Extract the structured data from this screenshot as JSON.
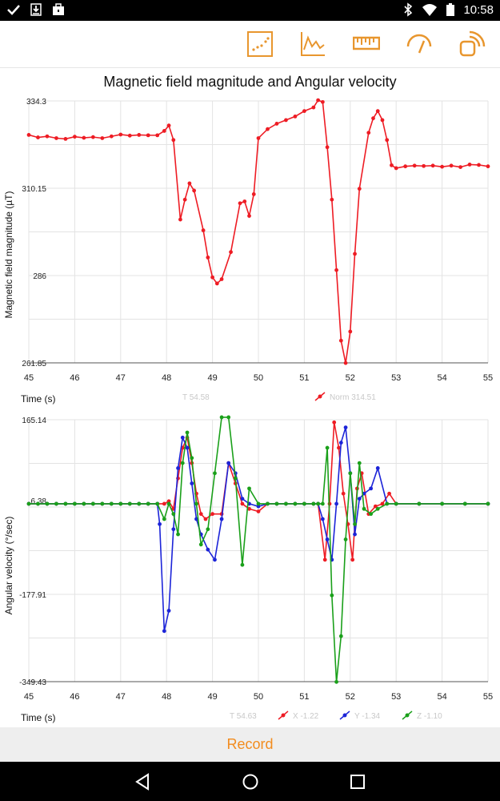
{
  "status_bar": {
    "time": "10:58",
    "icons": [
      "check-icon",
      "download-icon",
      "briefcase-icon",
      "bluetooth-icon",
      "wifi-icon",
      "battery-icon"
    ]
  },
  "toolbar": {
    "icons": [
      "scatter-chart-icon",
      "line-chart-icon",
      "ruler-icon",
      "gauge-icon",
      "signal-icon"
    ],
    "accent_color": "#e8962e"
  },
  "page": {
    "title": "Magnetic field magnitude and Angular velocity"
  },
  "record": {
    "label": "Record",
    "color": "#f28c1e"
  },
  "nav": {
    "icons": [
      "back-icon",
      "home-icon",
      "recents-icon"
    ]
  },
  "chart_data": [
    {
      "type": "line",
      "title": "",
      "xlabel": "Time (s)",
      "ylabel": "Magnetic field magnitude (µT)",
      "xlim": [
        45,
        55
      ],
      "ylim": [
        261.85,
        334.3
      ],
      "x_ticks": [
        "45",
        "46",
        "47",
        "48",
        "49",
        "50",
        "51",
        "52",
        "53",
        "54",
        "55"
      ],
      "y_ticks": [
        "334.3",
        "310.15",
        "286",
        "261.85"
      ],
      "readout": {
        "t": "T 54.58"
      },
      "legend": [
        {
          "name": "Norm 314.51",
          "color": "#ee1c24"
        }
      ],
      "series": [
        {
          "name": "Norm",
          "color": "#ee1c24",
          "x": [
            45.0,
            45.2,
            45.4,
            45.6,
            45.8,
            46.0,
            46.2,
            46.4,
            46.6,
            46.8,
            47.0,
            47.2,
            47.4,
            47.6,
            47.8,
            47.95,
            48.05,
            48.15,
            48.3,
            48.4,
            48.5,
            48.6,
            48.8,
            48.9,
            49.0,
            49.1,
            49.2,
            49.4,
            49.6,
            49.7,
            49.8,
            49.9,
            50.0,
            50.2,
            50.4,
            50.6,
            50.8,
            51.0,
            51.2,
            51.3,
            51.4,
            51.5,
            51.6,
            51.7,
            51.8,
            51.9,
            52.0,
            52.1,
            52.2,
            52.4,
            52.5,
            52.6,
            52.7,
            52.8,
            52.9,
            53.0,
            53.2,
            53.4,
            53.6,
            53.8,
            54.0,
            54.2,
            54.4,
            54.6,
            54.8,
            55.0
          ],
          "y": [
            324.9,
            324.2,
            324.5,
            324.0,
            323.8,
            324.4,
            324.1,
            324.3,
            324.0,
            324.5,
            325.0,
            324.7,
            324.9,
            324.8,
            324.8,
            326.0,
            327.5,
            323.5,
            301.5,
            307.0,
            311.5,
            309.5,
            298.5,
            291.0,
            285.5,
            283.8,
            285.0,
            292.5,
            306.0,
            306.5,
            302.5,
            308.5,
            324.0,
            326.5,
            328.0,
            329.0,
            330.0,
            331.5,
            332.5,
            334.5,
            334.0,
            321.5,
            307.0,
            287.5,
            268.0,
            261.8,
            270.5,
            292.0,
            310.0,
            325.5,
            329.5,
            331.5,
            329.0,
            323.5,
            316.5,
            315.7,
            316.2,
            316.4,
            316.3,
            316.4,
            316.1,
            316.4,
            316.0,
            316.7,
            316.6,
            316.2
          ]
        }
      ]
    },
    {
      "type": "line",
      "title": "",
      "xlabel": "Time (s)",
      "ylabel": "Angular velocity (°/sec)",
      "xlim": [
        45,
        55
      ],
      "ylim": [
        -349.43,
        165.14
      ],
      "x_ticks": [
        "45",
        "46",
        "47",
        "48",
        "49",
        "50",
        "51",
        "52",
        "53",
        "54",
        "55"
      ],
      "y_ticks": [
        "165.14",
        "6.38",
        "-177.91",
        "-349.43"
      ],
      "readout": {
        "t": "T 54.63"
      },
      "legend": [
        {
          "name": "X -1.22",
          "color": "#ee1c24"
        },
        {
          "name": "Y -1.34",
          "color": "#1c24d8"
        },
        {
          "name": "Z -1.10",
          "color": "#1aa01a"
        }
      ],
      "series": [
        {
          "name": "X",
          "color": "#ee1c24",
          "x": [
            45.0,
            45.2,
            45.4,
            45.6,
            45.8,
            46.0,
            46.2,
            46.4,
            46.6,
            46.8,
            47.0,
            47.2,
            47.4,
            47.6,
            47.8,
            47.95,
            48.05,
            48.15,
            48.25,
            48.35,
            48.45,
            48.55,
            48.65,
            48.75,
            48.85,
            49.0,
            49.2,
            49.35,
            49.5,
            49.65,
            49.8,
            50.0,
            50.2,
            50.4,
            50.6,
            50.8,
            51.0,
            51.2,
            51.3,
            51.45,
            51.55,
            51.65,
            51.75,
            51.85,
            51.95,
            52.05,
            52.15,
            52.25,
            52.4,
            52.55,
            52.7,
            52.85,
            53.0,
            53.5,
            54.0,
            54.5,
            55.0
          ],
          "y": [
            0,
            0,
            0,
            0,
            0,
            0,
            0,
            0,
            0,
            0,
            0,
            0,
            0,
            0,
            0,
            0,
            5,
            -10,
            50,
            110,
            130,
            80,
            20,
            -20,
            -30,
            -20,
            -20,
            80,
            40,
            0,
            -10,
            -15,
            0,
            0,
            0,
            0,
            0,
            0,
            0,
            -110,
            0,
            160,
            110,
            20,
            -40,
            -110,
            30,
            60,
            -20,
            -5,
            0,
            20,
            0,
            0,
            0,
            0,
            0
          ]
        },
        {
          "name": "Y",
          "color": "#1c24d8",
          "x": [
            45.0,
            45.2,
            45.4,
            45.6,
            45.8,
            46.0,
            46.2,
            46.4,
            46.6,
            46.8,
            47.0,
            47.2,
            47.4,
            47.6,
            47.8,
            47.85,
            47.95,
            48.05,
            48.15,
            48.25,
            48.35,
            48.45,
            48.55,
            48.65,
            48.75,
            48.9,
            49.05,
            49.2,
            49.35,
            49.5,
            49.65,
            49.8,
            50.0,
            50.2,
            50.4,
            50.6,
            50.8,
            51.0,
            51.2,
            51.3,
            51.4,
            51.5,
            51.6,
            51.7,
            51.8,
            51.9,
            52.0,
            52.1,
            52.2,
            52.3,
            52.45,
            52.6,
            52.8,
            53.0,
            53.5,
            54.0,
            54.5,
            55.0
          ],
          "y": [
            0,
            0,
            0,
            0,
            0,
            0,
            0,
            0,
            0,
            0,
            0,
            0,
            0,
            0,
            0,
            -40,
            -250,
            -210,
            -50,
            70,
            130,
            110,
            40,
            -30,
            -60,
            -90,
            -110,
            -30,
            80,
            60,
            10,
            0,
            -5,
            0,
            0,
            0,
            0,
            0,
            0,
            0,
            -30,
            -70,
            -110,
            0,
            120,
            150,
            60,
            -60,
            10,
            20,
            30,
            70,
            0,
            0,
            0,
            0,
            0,
            0
          ]
        },
        {
          "name": "Z",
          "color": "#1aa01a",
          "x": [
            45.0,
            45.2,
            45.4,
            45.6,
            45.8,
            46.0,
            46.2,
            46.4,
            46.6,
            46.8,
            47.0,
            47.2,
            47.4,
            47.6,
            47.8,
            47.95,
            48.05,
            48.15,
            48.25,
            48.35,
            48.45,
            48.55,
            48.65,
            48.75,
            48.9,
            49.05,
            49.2,
            49.35,
            49.5,
            49.65,
            49.8,
            50.0,
            50.2,
            50.4,
            50.6,
            50.8,
            51.0,
            51.2,
            51.3,
            51.4,
            51.5,
            51.6,
            51.7,
            51.8,
            51.9,
            52.0,
            52.1,
            52.2,
            52.3,
            52.45,
            52.6,
            52.8,
            53.0,
            53.5,
            54.0,
            54.5,
            55.0
          ],
          "y": [
            0,
            0,
            0,
            0,
            0,
            0,
            0,
            0,
            0,
            0,
            0,
            0,
            0,
            0,
            0,
            -30,
            0,
            -20,
            -60,
            80,
            140,
            90,
            0,
            -80,
            -50,
            60,
            170,
            170,
            50,
            -120,
            30,
            0,
            0,
            0,
            0,
            0,
            0,
            0,
            0,
            0,
            110,
            -180,
            -350,
            -260,
            -70,
            60,
            -40,
            80,
            -10,
            -20,
            -10,
            0,
            0,
            0,
            0,
            0,
            0
          ]
        }
      ]
    }
  ]
}
